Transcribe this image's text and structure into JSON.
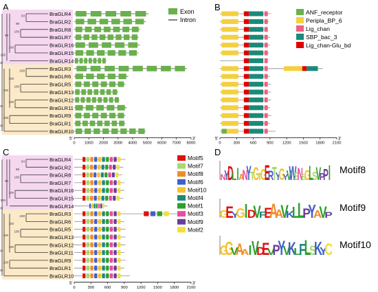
{
  "panel_letters": [
    "A",
    "B",
    "C",
    "D"
  ],
  "genes_top": [
    "BraGLR4",
    "BraGLR2",
    "BraGLR8",
    "BraGLR7",
    "BraGLR16",
    "BraGLR15",
    "BraGLR14",
    "BraGLR3",
    "BraGLR6",
    "BraGLR5",
    "BraGLR13",
    "BraGLR12",
    "BraGLR11",
    "BraGLR9",
    "BraGLR1",
    "BraGLR10"
  ],
  "genes_bottom": [
    "BraGLR4",
    "BraGLR2",
    "BraGLR8",
    "BraGLR7",
    "BraGLR16",
    "BraGLR15",
    "BraGLR14",
    "BraGLR3",
    "BraGLR6",
    "BraGLR5",
    "BraGLR13",
    "BraGLR12",
    "BraGLR11",
    "BraGLR9",
    "BraGLR1",
    "BraGLR10"
  ],
  "bootstrap_values": [
    "64",
    "100",
    "100",
    "99",
    "100",
    "100",
    "100",
    "100",
    "100",
    "100",
    "100",
    "100",
    "99",
    "100",
    "100"
  ],
  "panel_a": {
    "legend": [
      {
        "label": "Exon",
        "color": "#6ab04c",
        "kind": "box"
      },
      {
        "label": "Intron",
        "color": "#000000",
        "kind": "line"
      }
    ],
    "axis_ticks": [
      "0",
      "1000",
      "2000",
      "3000",
      "4000",
      "5000",
      "6000",
      "7000",
      "8000"
    ],
    "axis_start": "5'",
    "axis_end": "3'",
    "gene_lengths": [
      5100,
      4900,
      4500,
      4400,
      4500,
      4400,
      2200,
      7700,
      3700,
      3500,
      3000,
      3100,
      3600,
      3500,
      3500,
      4900
    ]
  },
  "panel_b": {
    "legend": [
      {
        "label": "ANF_receptor",
        "color": "#6ab04c"
      },
      {
        "label": "Peripla_BP_6",
        "color": "#f4d03f"
      },
      {
        "label": "Lig_chan",
        "color": "#f06080"
      },
      {
        "label": "SBP_bac_3",
        "color": "#1a8a7a"
      },
      {
        "label": "Lig_chan-Glu_bd",
        "color": "#e00000"
      }
    ],
    "axis_ticks": [
      "0",
      "300",
      "600",
      "900",
      "1200",
      "1500",
      "1800",
      "2100"
    ],
    "axis_start": "5'",
    "axis_end": "3'",
    "protein_lengths": [
      920,
      880,
      860,
      900,
      900,
      880,
      600,
      1850,
      900,
      920,
      920,
      920,
      900,
      920,
      900,
      1000
    ]
  },
  "panel_c": {
    "legend": [
      {
        "label": "Motif5",
        "color": "#e01010"
      },
      {
        "label": "Motif7",
        "color": "#a8d86e"
      },
      {
        "label": "Motif8",
        "color": "#f08c28"
      },
      {
        "label": "Motif6",
        "color": "#4060c8"
      },
      {
        "label": "Motif10",
        "color": "#f4c430"
      },
      {
        "label": "Motif4",
        "color": "#1a8a7a"
      },
      {
        "label": "Motif1",
        "color": "#2ca02c"
      },
      {
        "label": "Motif3",
        "color": "#e84c9c"
      },
      {
        "label": "Motif9",
        "color": "#6a3d9a"
      },
      {
        "label": "Motif2",
        "color": "#f0e040"
      }
    ],
    "axis_ticks": [
      "0",
      "300",
      "600",
      "900",
      "1200",
      "1500",
      "1800",
      "2100"
    ],
    "axis_start": "5'",
    "axis_end": "3'",
    "protein_lengths": [
      920,
      880,
      860,
      900,
      900,
      880,
      600,
      1850,
      900,
      920,
      920,
      920,
      900,
      920,
      900,
      1000
    ]
  },
  "panel_d": {
    "logos": [
      {
        "label": "Motif8",
        "sequence": "NYDLIANYTGTGERTYGYVWSNSGLSVPPI"
      },
      {
        "label": "Motif9",
        "sequence": "GEYGIDVFEAAVKLLPYAVP"
      },
      {
        "label": "Motif10",
        "sequence": "GGVAAIVDEVPYVKLFLSKYC"
      }
    ]
  },
  "colors": {
    "clade_pink": "#f5d8f0",
    "clade_tan": "#fbe9c8"
  }
}
